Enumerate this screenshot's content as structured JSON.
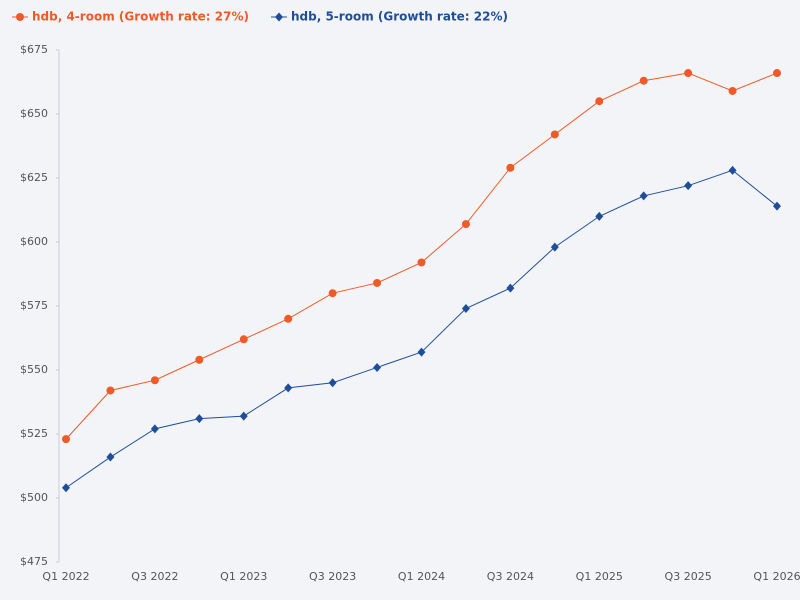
{
  "chart_data": {
    "type": "line",
    "categories": [
      "Q1 2022",
      null,
      "Q3 2022",
      null,
      "Q1 2023",
      null,
      "Q3 2023",
      null,
      "Q1 2024",
      null,
      "Q3 2024",
      null,
      "Q1 2025",
      null,
      "Q3 2025",
      null,
      "Q1 2026"
    ],
    "series": [
      {
        "name": "hdb, 4-room (Growth rate: 27%)",
        "color": "#f05a28",
        "marker": "circle",
        "values": [
          523,
          542,
          546,
          554,
          562,
          570,
          580,
          584,
          592,
          607,
          629,
          642,
          655,
          663,
          666,
          659,
          666
        ]
      },
      {
        "name": "hdb, 5-room (Growth rate: 22%)",
        "color": "#1f4e99",
        "marker": "diamond",
        "values": [
          504,
          516,
          527,
          531,
          532,
          543,
          545,
          551,
          557,
          574,
          582,
          598,
          610,
          618,
          622,
          628,
          614
        ]
      }
    ],
    "ylim": [
      475,
      675
    ],
    "yticks": [
      {
        "value": 475,
        "label": "$475"
      },
      {
        "value": 500,
        "label": "$500"
      },
      {
        "value": 525,
        "label": "$525"
      },
      {
        "value": 550,
        "label": "$550"
      },
      {
        "value": 575,
        "label": "$575"
      },
      {
        "value": 600,
        "label": "$600"
      },
      {
        "value": 625,
        "label": "$625"
      },
      {
        "value": 650,
        "label": "$650"
      },
      {
        "value": 675,
        "label": "$675"
      }
    ],
    "grid": false,
    "legend": "top-left"
  }
}
